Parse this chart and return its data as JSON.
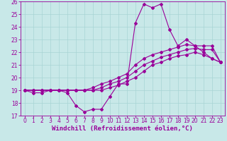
{
  "xlabel": "Windchill (Refroidissement éolien,°C)",
  "xlim": [
    -0.5,
    23.5
  ],
  "ylim": [
    17,
    26
  ],
  "xticks": [
    0,
    1,
    2,
    3,
    4,
    5,
    6,
    7,
    8,
    9,
    10,
    11,
    12,
    13,
    14,
    15,
    16,
    17,
    18,
    19,
    20,
    21,
    22,
    23
  ],
  "yticks": [
    17,
    18,
    19,
    20,
    21,
    22,
    23,
    24,
    25,
    26
  ],
  "bg_color": "#c8e8e8",
  "line_color": "#990099",
  "grid_color": "#a8d4d4",
  "series": [
    [
      19.0,
      18.8,
      18.8,
      19.0,
      19.0,
      18.8,
      17.8,
      17.3,
      17.5,
      17.5,
      18.5,
      19.5,
      19.5,
      24.3,
      25.8,
      25.5,
      25.8,
      23.8,
      22.5,
      23.0,
      22.5,
      22.0,
      21.5,
      21.2
    ],
    [
      19.0,
      19.0,
      19.0,
      19.0,
      19.0,
      19.0,
      19.0,
      19.0,
      19.2,
      19.5,
      19.7,
      20.0,
      20.3,
      21.0,
      21.5,
      21.8,
      22.0,
      22.2,
      22.4,
      22.6,
      22.5,
      22.5,
      22.5,
      21.2
    ],
    [
      19.0,
      19.0,
      19.0,
      19.0,
      19.0,
      19.0,
      19.0,
      19.0,
      19.0,
      19.2,
      19.5,
      19.7,
      20.0,
      20.5,
      21.0,
      21.3,
      21.6,
      21.8,
      22.0,
      22.2,
      22.3,
      22.2,
      22.2,
      21.2
    ],
    [
      19.0,
      19.0,
      19.0,
      19.0,
      19.0,
      19.0,
      19.0,
      19.0,
      19.0,
      19.0,
      19.2,
      19.4,
      19.7,
      20.0,
      20.5,
      21.0,
      21.2,
      21.5,
      21.7,
      21.8,
      22.0,
      21.8,
      21.5,
      21.2
    ]
  ],
  "marker": "D",
  "markersize": 2.0,
  "linewidth": 0.8,
  "label_fontsize": 6.5,
  "tick_fontsize": 5.5
}
